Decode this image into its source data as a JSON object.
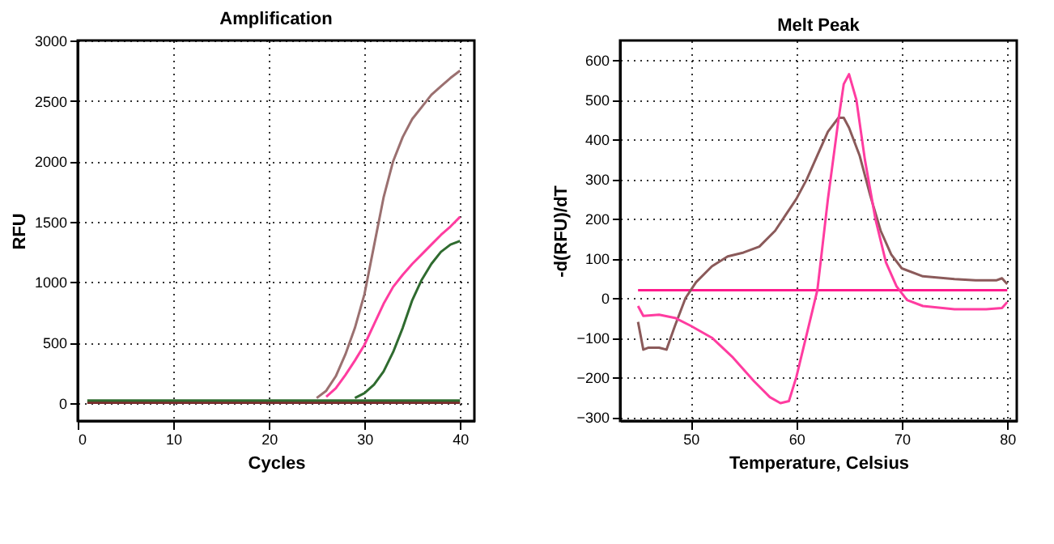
{
  "chart_data": [
    {
      "type": "line",
      "title": "Amplification",
      "xlabel": "Cycles",
      "ylabel": "RFU",
      "xlim": [
        0,
        41.5
      ],
      "ylim": [
        -150,
        3000
      ],
      "xticks": [
        0,
        10,
        20,
        30,
        40
      ],
      "yticks": [
        0,
        500,
        1000,
        1500,
        2000,
        2500,
        3000
      ],
      "grid": true,
      "marker": "none",
      "line_style": "solid",
      "series": [
        {
          "color": "#7a2e2e",
          "x": [
            1,
            10,
            20,
            30,
            40
          ],
          "values": [
            0,
            0,
            0,
            0,
            0
          ]
        },
        {
          "color": "#2f6b2f",
          "x": [
            1,
            10,
            20,
            30,
            40
          ],
          "values": [
            20,
            20,
            20,
            20,
            20
          ]
        },
        {
          "color": "#9b7070",
          "x": [
            25,
            26,
            27,
            28,
            29,
            30,
            31,
            32,
            33,
            34,
            35,
            36,
            37,
            38,
            39,
            40
          ],
          "values": [
            40,
            100,
            220,
            400,
            620,
            900,
            1300,
            1700,
            2000,
            2200,
            2350,
            2450,
            2550,
            2620,
            2690,
            2750
          ]
        },
        {
          "color": "#ff3ca0",
          "x": [
            26,
            27,
            28,
            29,
            30,
            31,
            32,
            33,
            34,
            35,
            36,
            37,
            38,
            39,
            40
          ],
          "values": [
            50,
            120,
            230,
            350,
            480,
            650,
            820,
            960,
            1060,
            1150,
            1230,
            1310,
            1390,
            1460,
            1540
          ]
        },
        {
          "color": "#2f6b2f",
          "x": [
            29,
            30,
            31,
            32,
            33,
            34,
            35,
            36,
            37,
            38,
            39,
            40
          ],
          "values": [
            40,
            80,
            150,
            260,
            420,
            620,
            850,
            1020,
            1150,
            1250,
            1310,
            1340
          ]
        }
      ]
    },
    {
      "type": "line",
      "title": "Melt Peak",
      "xlabel": "Temperature, Celsius",
      "ylabel": "-d(RFU)/dT",
      "xlim": [
        43.3,
        80.9
      ],
      "ylim": [
        -310,
        650
      ],
      "xticks": [
        50,
        60,
        70,
        80
      ],
      "yticks": [
        -300,
        -200,
        -100,
        0,
        100,
        200,
        300,
        400,
        500,
        600
      ],
      "grid": true,
      "marker": "none",
      "line_style": "solid",
      "series": [
        {
          "color": "#ff1a8c",
          "x": [
            45,
            80
          ],
          "values": [
            20,
            20
          ]
        },
        {
          "color": "#8b5a5a",
          "x": [
            45,
            45.5,
            46,
            47,
            47.7,
            48.5,
            49.5,
            50.5,
            52,
            53.5,
            55,
            56.5,
            58,
            59,
            60,
            61,
            62,
            63,
            64,
            64.5,
            65,
            66,
            67,
            68,
            69,
            70,
            72,
            75,
            77,
            79,
            79.5,
            80
          ],
          "values": [
            -60,
            -130,
            -125,
            -125,
            -130,
            -70,
            0,
            40,
            80,
            105,
            115,
            130,
            170,
            210,
            250,
            300,
            360,
            420,
            455,
            455,
            430,
            360,
            260,
            170,
            110,
            75,
            55,
            48,
            45,
            45,
            50,
            35
          ]
        },
        {
          "color": "#ff3ca0",
          "x": [
            45,
            45.5,
            47,
            48.5,
            50,
            52,
            54,
            56,
            57.5,
            58.5,
            59.3,
            60,
            61,
            62,
            63,
            64,
            64.5,
            65,
            65.7,
            66.5,
            67.5,
            68.5,
            69.5,
            70.5,
            72,
            75,
            78,
            79.5,
            80
          ],
          "values": [
            -20,
            -45,
            -42,
            -50,
            -70,
            -100,
            -150,
            -210,
            -250,
            -265,
            -260,
            -200,
            -90,
            20,
            250,
            450,
            540,
            565,
            500,
            350,
            200,
            90,
            30,
            -5,
            -20,
            -28,
            -28,
            -25,
            -10
          ]
        }
      ]
    }
  ]
}
